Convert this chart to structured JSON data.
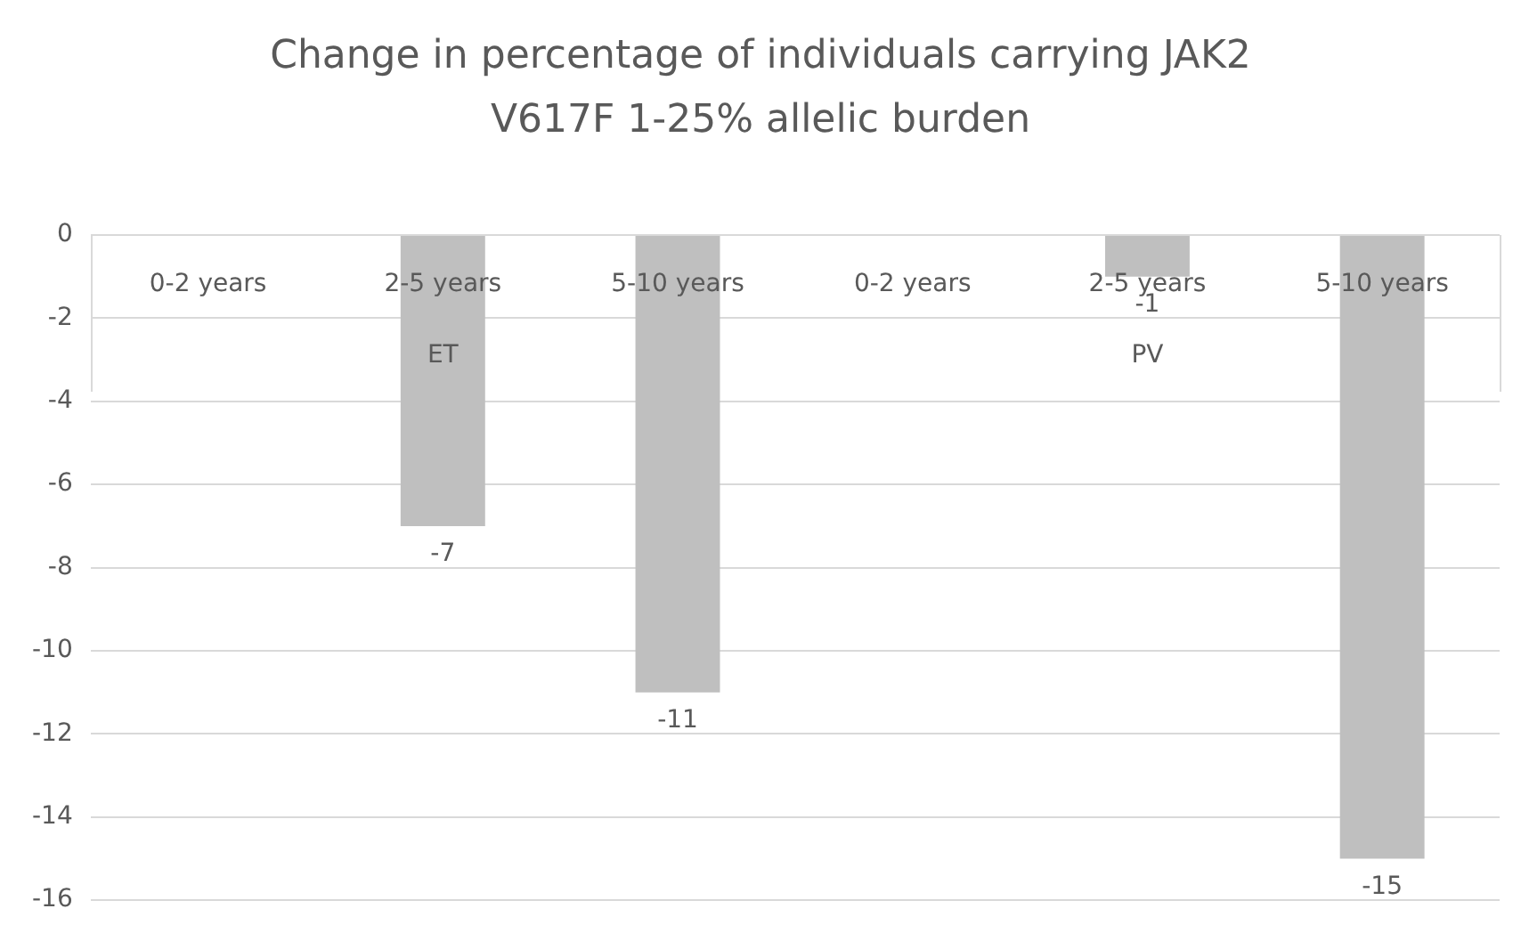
{
  "chart_data": {
    "type": "bar",
    "title": "Change in percentage of individuals carrying JAK2 V617F 1-25% allelic burden",
    "categories": [
      "0-2 years",
      "2-5 years",
      "5-10 years",
      "0-2 years",
      "2-5 years",
      "5-10 years"
    ],
    "values": [
      null,
      -7,
      -11,
      null,
      -1,
      -15
    ],
    "color": "#bfbfbf",
    "annotations": [
      "ET",
      "PV"
    ],
    "ylim": [
      -16,
      0
    ],
    "yticks": [
      0,
      -2,
      -4,
      -6,
      -8,
      -10,
      -12,
      -14,
      -16
    ],
    "grid": "y",
    "data_labels": true,
    "legend": false
  }
}
